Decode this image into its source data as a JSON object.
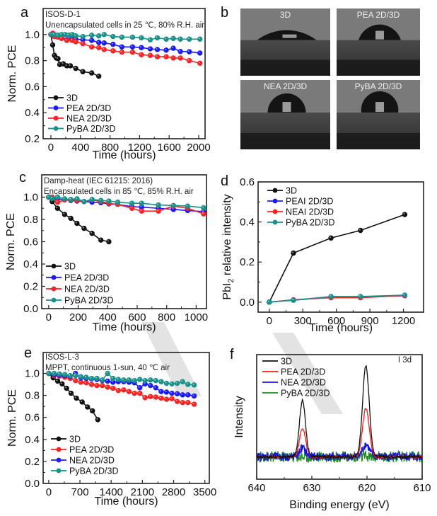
{
  "figure": {
    "panel_labels": [
      "a",
      "b",
      "c",
      "d",
      "e",
      "f"
    ]
  },
  "chart_data": [
    {
      "id": "a",
      "type": "line",
      "title": "",
      "annotations": [
        "ISOS-D-1",
        "Unencapsulated cells in 25 ℃, 80% R.H. air"
      ],
      "xlabel": "Time (hours)",
      "ylabel": "Norm. PCE",
      "xlim": [
        -105,
        2086
      ],
      "ylim": [
        0.2,
        1.2
      ],
      "xticks": [
        0,
        400,
        800,
        1200,
        1600,
        2000
      ],
      "xtick_labels": [
        "0",
        "400",
        "800",
        "1200",
        "1600",
        "2000"
      ],
      "yticks": [
        0.2,
        0.4,
        0.6,
        0.8,
        1.0
      ],
      "ytick_labels": [
        "0.2",
        "0.4",
        "0.6",
        "0.8",
        "1.0"
      ],
      "legend_position": "bottom-left",
      "markers": true,
      "series": [
        {
          "name": "3D",
          "color": "#111111",
          "x": [
            0,
            24,
            48,
            72,
            96,
            120,
            168,
            216,
            264,
            336,
            432,
            552,
            648
          ],
          "y": [
            1.0,
            0.92,
            0.84,
            0.82,
            0.815,
            0.77,
            0.775,
            0.76,
            0.76,
            0.74,
            0.715,
            0.705,
            0.68
          ]
        },
        {
          "name": "PEA 2D/3D",
          "color": "#1a1aff",
          "x": [
            0,
            24,
            48,
            96,
            144,
            216,
            288,
            336,
            432,
            552,
            648,
            720,
            840,
            960,
            1104,
            1224,
            1344,
            1440,
            1560,
            1656,
            1752,
            1872,
            2016
          ],
          "y": [
            1.0,
            0.995,
            0.99,
            0.985,
            0.98,
            0.96,
            0.97,
            0.965,
            0.96,
            0.955,
            0.94,
            0.935,
            0.925,
            0.905,
            0.905,
            0.9,
            0.89,
            0.885,
            0.88,
            0.895,
            0.87,
            0.868,
            0.858
          ]
        },
        {
          "name": "NEA 2D/3D",
          "color": "#ff2020",
          "x": [
            0,
            24,
            48,
            96,
            144,
            216,
            288,
            336,
            432,
            552,
            648,
            720,
            840,
            960,
            1104,
            1224,
            1344,
            1440,
            1560,
            1656,
            1752,
            1872,
            2016
          ],
          "y": [
            1.0,
            1.01,
            0.985,
            0.98,
            0.97,
            0.955,
            0.955,
            0.945,
            0.93,
            0.905,
            0.9,
            0.885,
            0.875,
            0.865,
            0.865,
            0.845,
            0.84,
            0.83,
            0.83,
            0.82,
            0.82,
            0.8,
            0.78
          ]
        },
        {
          "name": "PyBA 2D/3D",
          "color": "#17918a",
          "x": [
            0,
            24,
            48,
            96,
            144,
            192,
            240,
            288,
            336,
            432,
            552,
            648,
            720,
            840,
            960,
            1104,
            1224,
            1344,
            1440,
            1560,
            1656,
            1752,
            1872,
            2016
          ],
          "y": [
            1.0,
            1.0,
            1.0,
            0.995,
            1.0,
            1.0,
            0.995,
            1.0,
            0.99,
            0.985,
            0.995,
            0.99,
            1.0,
            0.985,
            0.98,
            0.98,
            0.975,
            0.96,
            0.975,
            0.965,
            0.97,
            0.965,
            0.965,
            0.965
          ]
        }
      ]
    },
    {
      "id": "b",
      "type": "image-grid",
      "images": [
        {
          "label": "3D",
          "contact_angle_shape": "flat"
        },
        {
          "label": "PEA 2D/3D",
          "contact_angle_shape": "medium"
        },
        {
          "label": "NEA 2D/3D",
          "contact_angle_shape": "high"
        },
        {
          "label": "PyBA 2D/3D",
          "contact_angle_shape": "highest"
        }
      ]
    },
    {
      "id": "c",
      "type": "line",
      "title": "",
      "annotations": [
        "Damp-heat (IEC 61215: 2016)",
        "Encapsulated cells in 85 ℃, 85% R.H. air"
      ],
      "xlabel": "Time (hours)",
      "ylabel": "Norm. PCE",
      "xlim": [
        -47,
        1070
      ],
      "ylim": [
        0.0,
        1.2
      ],
      "xticks": [
        0,
        200,
        400,
        600,
        800,
        1000
      ],
      "xtick_labels": [
        "0",
        "200",
        "400",
        "600",
        "800",
        "1000"
      ],
      "yticks": [
        0.0,
        0.2,
        0.4,
        0.6,
        0.8,
        1.0
      ],
      "ytick_labels": [
        "0.0",
        "0.2",
        "0.4",
        "0.6",
        "0.8",
        "1.0"
      ],
      "legend_position": "bottom-left",
      "markers": true,
      "series": [
        {
          "name": "3D",
          "color": "#111111",
          "x": [
            0,
            24,
            60,
            108,
            150,
            192,
            240,
            294,
            354,
            408
          ],
          "y": [
            1.0,
            0.96,
            0.9,
            0.845,
            0.81,
            0.765,
            0.72,
            0.675,
            0.615,
            0.6
          ]
        },
        {
          "name": "PEA 2D/3D",
          "color": "#1a1aff",
          "x": [
            0,
            24,
            60,
            108,
            150,
            192,
            240,
            294,
            354,
            408,
            468,
            564,
            630,
            744,
            846,
            942,
            1050
          ],
          "y": [
            1.0,
            0.995,
            0.985,
            0.975,
            0.97,
            0.965,
            0.96,
            0.955,
            0.95,
            0.94,
            0.935,
            0.915,
            0.91,
            0.9,
            0.89,
            0.88,
            0.87
          ]
        },
        {
          "name": "NEA 2D/3D",
          "color": "#ff2020",
          "x": [
            0,
            24,
            60,
            108,
            150,
            192,
            240,
            294,
            354,
            408,
            468,
            564,
            630,
            744,
            846,
            942,
            1050
          ],
          "y": [
            1.0,
            1.0,
            0.955,
            0.975,
            0.975,
            0.97,
            0.96,
            0.975,
            0.96,
            0.945,
            0.935,
            0.9,
            0.875,
            0.875,
            0.92,
            0.9,
            0.85
          ]
        },
        {
          "name": "PyBA 2D/3D",
          "color": "#17918a",
          "x": [
            0,
            24,
            60,
            108,
            150,
            192,
            240,
            294,
            354,
            408,
            468,
            564,
            630,
            744,
            846,
            942,
            1050
          ],
          "y": [
            1.0,
            0.99,
            1.0,
            0.985,
            0.98,
            0.985,
            0.96,
            0.98,
            0.97,
            0.965,
            0.955,
            0.945,
            0.945,
            0.93,
            0.925,
            0.92,
            0.905
          ]
        }
      ]
    },
    {
      "id": "d",
      "type": "line",
      "title": "",
      "xlabel": "Time (hours)",
      "ylabel": "PbI2 relative intensity",
      "xlim": [
        -100,
        1380
      ],
      "ylim": [
        -0.05,
        0.6
      ],
      "xticks": [
        0,
        300,
        600,
        900,
        1200
      ],
      "xtick_labels": [
        "0",
        "300",
        "600",
        "900",
        "1200"
      ],
      "yticks": [
        0.0,
        0.2,
        0.4,
        0.6
      ],
      "ytick_labels": [
        "0.0",
        "0.2",
        "0.4",
        "0.6"
      ],
      "legend_position": "top-left",
      "markers": true,
      "series": [
        {
          "name": "3D",
          "color": "#111111",
          "x": [
            0,
            216,
            552,
            816,
            1212
          ],
          "y": [
            0.0,
            0.245,
            0.32,
            0.358,
            0.437
          ]
        },
        {
          "name": "PEAI 2D/3D",
          "color": "#1a1aff",
          "x": [
            0,
            216,
            552,
            816,
            1212
          ],
          "y": [
            0.0,
            0.01,
            0.025,
            0.025,
            0.032
          ]
        },
        {
          "name": "NEAI 2D/3D",
          "color": "#ff2020",
          "x": [
            0,
            216,
            552,
            816,
            1212
          ],
          "y": [
            0.0,
            0.012,
            0.022,
            0.022,
            0.033
          ]
        },
        {
          "name": "PyBA 2D/3D",
          "color": "#17918a",
          "x": [
            0,
            216,
            552,
            816,
            1212
          ],
          "y": [
            0.0,
            0.01,
            0.028,
            0.028,
            0.035
          ]
        }
      ]
    },
    {
      "id": "e",
      "type": "line",
      "title": "",
      "annotations": [
        "ISOS-L-3",
        "MPPT, continuous 1-sun, 40 ℃ air"
      ],
      "xlabel": "Time (hours)",
      "ylabel": "Norm. PCE",
      "xlim": [
        -125,
        3600
      ],
      "ylim": [
        0.0,
        1.19
      ],
      "xticks": [
        0,
        700,
        1400,
        2100,
        2800,
        3500
      ],
      "xtick_labels": [
        "0",
        "700",
        "1400",
        "2100",
        "2800",
        "3500"
      ],
      "yticks": [
        0.0,
        0.2,
        0.4,
        0.6,
        0.8,
        1.0
      ],
      "ytick_labels": [
        "0.0",
        "0.2",
        "0.4",
        "0.6",
        "0.8",
        "1.0"
      ],
      "legend_position": "bottom-left",
      "markers": true,
      "series": [
        {
          "name": "3D",
          "color": "#111111",
          "x": [
            0,
            100,
            200,
            300,
            400,
            500,
            620,
            750,
            870,
            980,
            1100
          ],
          "y": [
            1.0,
            0.96,
            0.93,
            0.905,
            0.865,
            0.82,
            0.775,
            0.74,
            0.695,
            0.66,
            0.58
          ]
        },
        {
          "name": "PEA 2D/3D",
          "color": "#ff2020",
          "x": [
            0,
            120,
            240,
            360,
            480,
            600,
            720,
            840,
            960,
            1080,
            1200,
            1320,
            1440,
            1560,
            1680,
            1800,
            1920,
            2040,
            2160,
            2280,
            2400,
            2520,
            2640,
            2760,
            2880,
            3000,
            3120,
            3260
          ],
          "y": [
            1.0,
            0.98,
            0.975,
            0.965,
            0.955,
            0.935,
            0.92,
            0.915,
            0.9,
            0.89,
            0.89,
            0.875,
            0.865,
            0.845,
            0.85,
            0.835,
            0.82,
            0.82,
            0.78,
            0.79,
            0.785,
            0.775,
            0.765,
            0.77,
            0.745,
            0.735,
            0.735,
            0.72
          ]
        },
        {
          "name": "NEA 2D/3D",
          "color": "#1a1aff",
          "x": [
            0,
            120,
            240,
            360,
            480,
            600,
            720,
            840,
            960,
            1080,
            1200,
            1320,
            1440,
            1560,
            1680,
            1800,
            1920,
            2040,
            2160,
            2280,
            2400,
            2520,
            2640,
            2760,
            2880,
            3000,
            3120,
            3260
          ],
          "y": [
            1.0,
            0.99,
            0.985,
            0.98,
            0.975,
            1.0,
            0.96,
            0.955,
            0.95,
            0.945,
            0.935,
            0.93,
            0.92,
            0.925,
            0.925,
            0.92,
            0.915,
            0.87,
            0.905,
            0.89,
            0.87,
            0.835,
            0.83,
            0.82,
            0.815,
            0.805,
            0.805,
            0.795
          ]
        },
        {
          "name": "PyBA 2D/3D",
          "color": "#17918a",
          "x": [
            0,
            120,
            240,
            360,
            480,
            600,
            720,
            840,
            960,
            1080,
            1200,
            1320,
            1440,
            1560,
            1680,
            1800,
            1920,
            2040,
            2160,
            2280,
            2400,
            2520,
            2640,
            2760,
            2880,
            3000,
            3120,
            3260
          ],
          "y": [
            1.0,
            1.0,
            0.995,
            0.99,
            0.98,
            0.98,
            0.97,
            0.965,
            0.955,
            0.955,
            0.94,
            1.0,
            0.955,
            0.945,
            0.94,
            0.94,
            0.935,
            0.945,
            0.935,
            0.94,
            0.935,
            0.925,
            0.91,
            0.905,
            0.91,
            0.925,
            0.9,
            0.895
          ]
        }
      ]
    },
    {
      "id": "f",
      "type": "line",
      "title": "",
      "annotations": [
        "I 3d"
      ],
      "xlabel": "Binding energy (eV)",
      "ylabel": "Intensity",
      "xlim": [
        640,
        610
      ],
      "ylim": [
        0,
        1
      ],
      "xticks": [
        640,
        630,
        620,
        610
      ],
      "xtick_labels": [
        "640",
        "630",
        "620",
        "610"
      ],
      "minor_xticks": [
        635,
        625,
        615
      ],
      "yticks": [],
      "legend_position": "top-left",
      "markers": false,
      "baseline": 0.18,
      "noise_amplitude": {
        "3D": 0.01,
        "PEA 2D/3D": 0.01,
        "NEA 2D/3D": 0.035,
        "PyBA 2D/3D": 0.045
      },
      "series": [
        {
          "name": "3D",
          "color": "#111111",
          "peaks": [
            {
              "center": 631.7,
              "height": 0.45,
              "sigma": 0.55
            },
            {
              "center": 620.2,
              "height": 0.73,
              "sigma": 0.6
            }
          ]
        },
        {
          "name": "PEA 2D/3D",
          "color": "#ff1a1a",
          "peaks": [
            {
              "center": 631.7,
              "height": 0.23,
              "sigma": 0.55
            },
            {
              "center": 620.2,
              "height": 0.39,
              "sigma": 0.6
            }
          ]
        },
        {
          "name": "NEA 2D/3D",
          "color": "#1414ee",
          "peaks": [
            {
              "center": 631.7,
              "height": 0.07,
              "sigma": 0.55
            },
            {
              "center": 620.2,
              "height": 0.1,
              "sigma": 0.6
            }
          ]
        },
        {
          "name": "PyBA 2D/3D",
          "color": "#1b8c1b",
          "peaks": []
        }
      ]
    }
  ]
}
